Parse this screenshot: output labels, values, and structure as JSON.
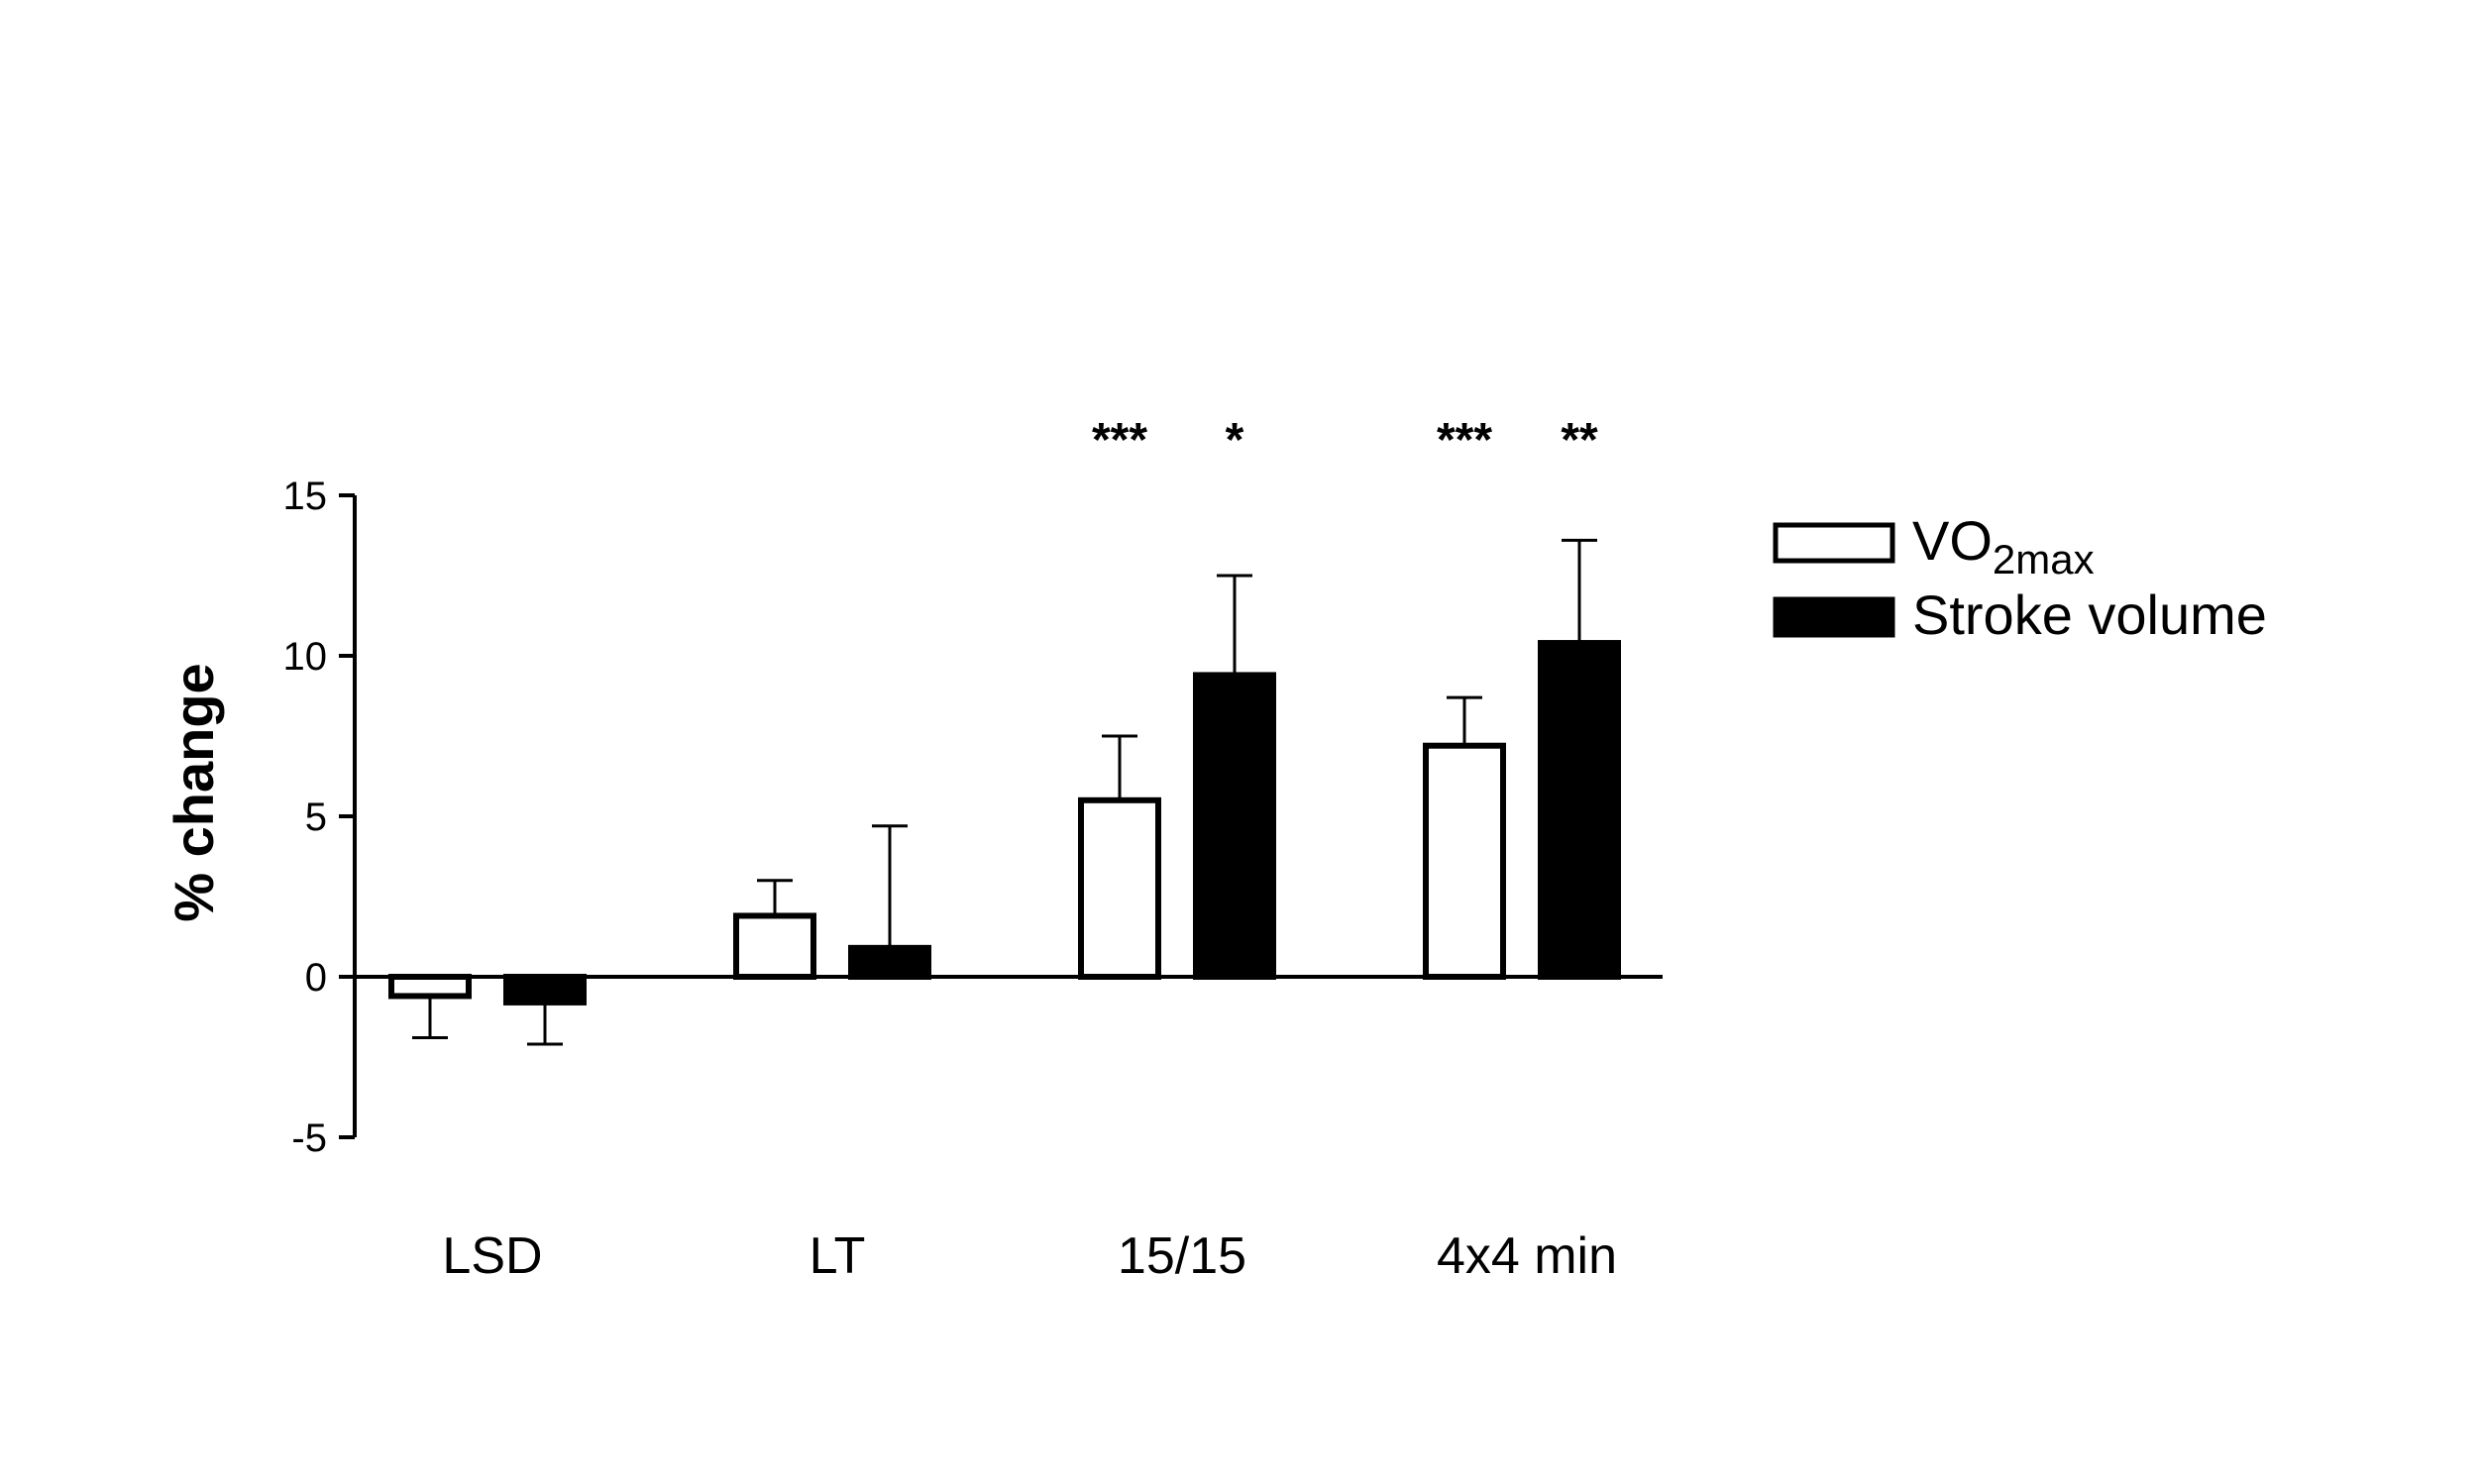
{
  "chart_data": {
    "type": "bar",
    "ylabel": "% change",
    "ylim": [
      -5,
      15
    ],
    "yticks": [
      -5,
      0,
      5,
      10,
      15
    ],
    "categories": [
      "LSD",
      "LT",
      "15/15",
      "4x4 min"
    ],
    "series": [
      {
        "key": "vo2",
        "legend_main": "VO",
        "legend_sub": "2max",
        "fill": "#ffffff",
        "stroke": "#000000",
        "values": [
          -0.6,
          1.9,
          5.5,
          7.2
        ],
        "errors": [
          1.3,
          1.1,
          2.0,
          1.5
        ],
        "significance": [
          "",
          "",
          "***",
          "***"
        ]
      },
      {
        "key": "sv",
        "name": "Stroke volume",
        "fill": "#000000",
        "stroke": "#000000",
        "values": [
          -0.8,
          0.9,
          9.4,
          10.4
        ],
        "errors": [
          1.3,
          3.8,
          3.1,
          3.2
        ],
        "significance": [
          "",
          "",
          "*",
          "**"
        ]
      }
    ],
    "legend_position": "top-right",
    "grid": false
  }
}
